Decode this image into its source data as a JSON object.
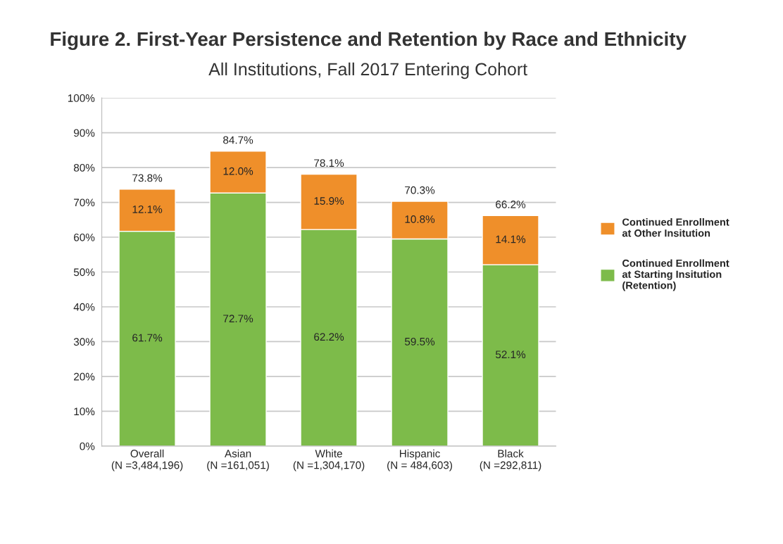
{
  "chart_data": {
    "type": "bar",
    "stacked": true,
    "title": "Figure 2. First-Year Persistence and Retention by Race and Ethnicity",
    "subtitle": "All Institutions, Fall 2017 Entering Cohort",
    "categories": [
      "Overall\n(N =3,484,196)",
      "Asian\n(N =161,051)",
      "White\n(N =1,304,170)",
      "Hispanic\n(N = 484,603)",
      "Black\n(N =292,811)"
    ],
    "series": [
      {
        "name": "Continued Enrollment\nat Starting Insitution\n(Retention)",
        "color": "#7dbb4a",
        "values": [
          61.7,
          72.7,
          62.2,
          59.5,
          52.1
        ],
        "value_labels": [
          "61.7%",
          "72.7%",
          "62.2%",
          "59.5%",
          "52.1%"
        ]
      },
      {
        "name": "Continued Enrollment\nat Other Insitution",
        "color": "#ef8f2a",
        "values": [
          12.1,
          12.0,
          15.9,
          10.8,
          14.1
        ],
        "value_labels": [
          "12.1%",
          "12.0%",
          "15.9%",
          "10.8%",
          "14.1%"
        ]
      }
    ],
    "totals": [
      "73.8%",
      "84.7%",
      "78.1%",
      "70.3%",
      "66.2%"
    ],
    "ylim": [
      0,
      100
    ],
    "yticks": [
      {
        "value": 0,
        "label": "0%"
      },
      {
        "value": 10,
        "label": "10%"
      },
      {
        "value": 20,
        "label": "20%"
      },
      {
        "value": 30,
        "label": "30%"
      },
      {
        "value": 40,
        "label": "40%"
      },
      {
        "value": 50,
        "label": "50%"
      },
      {
        "value": 60,
        "label": "60%"
      },
      {
        "value": 70,
        "label": "70%"
      },
      {
        "value": 80,
        "label": "80%"
      },
      {
        "value": 90,
        "label": "90%"
      },
      {
        "value": 100,
        "label": "100%"
      }
    ],
    "grid": "y",
    "legend": "right"
  }
}
